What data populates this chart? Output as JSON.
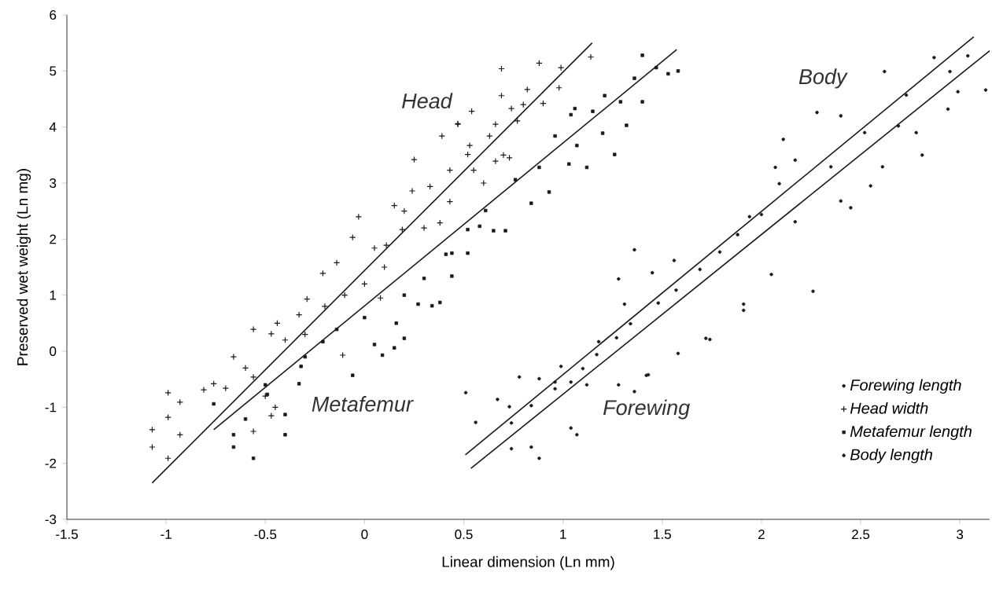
{
  "chart_data": {
    "type": "scatter",
    "xlabel": "Linear dimension (Ln mm)",
    "ylabel": "Preserved wet weight (Ln mg)",
    "xlim": [
      -1.5,
      3.15
    ],
    "ylim": [
      -3,
      6
    ],
    "xticks": [
      -1.5,
      -1,
      -0.5,
      0,
      0.5,
      1,
      1.5,
      2,
      2.5,
      3
    ],
    "yticks": [
      -3,
      -2,
      -1,
      0,
      1,
      2,
      3,
      4,
      5,
      6
    ],
    "grid": false,
    "legend": "bottom right",
    "annotations": [
      "Head",
      "Metafemur",
      "Forewing",
      "Body"
    ],
    "series": [
      {
        "name": "Forewing length",
        "marker": "circle",
        "color": "#1a1a1a",
        "x": [
          0.51,
          0.56,
          0.67,
          0.73,
          0.78,
          0.74,
          0.84,
          0.88,
          0.88,
          0.96,
          1.04,
          1.07,
          1.04,
          1.12,
          1.28,
          1.36,
          1.42,
          1.36,
          1.28,
          0.99,
          1.18,
          1.31,
          1.45,
          1.56,
          1.72,
          1.58,
          1.91,
          2.07,
          1.94,
          2.11,
          2.17,
          2.09,
          2.0,
          1.88,
          1.79,
          2.28,
          2.4,
          2.62,
          2.87
        ],
        "values": [
          -0.74,
          -1.27,
          -0.86,
          -0.99,
          -0.46,
          -1.74,
          -1.71,
          -1.91,
          -0.49,
          -0.55,
          -1.37,
          -1.49,
          -0.55,
          -0.6,
          -0.6,
          -0.72,
          -0.43,
          1.81,
          1.29,
          -0.27,
          0.17,
          0.84,
          1.4,
          1.62,
          0.23,
          -0.04,
          0.84,
          3.28,
          2.4,
          3.78,
          3.41,
          2.99,
          2.44,
          2.08,
          1.77,
          4.26,
          4.2,
          4.99,
          5.24
        ]
      },
      {
        "name": "Head width",
        "marker": "cross",
        "color": "#1a1a1a",
        "x": [
          -1.07,
          -1.07,
          -0.99,
          -0.99,
          -0.93,
          -0.99,
          -0.93,
          -0.81,
          -0.76,
          -0.7,
          -0.66,
          -0.56,
          -0.47,
          -0.44,
          -0.56,
          -0.47,
          -0.56,
          -0.33,
          -0.29,
          -0.21,
          -0.14,
          -0.06,
          -0.03,
          0.05,
          0.11,
          0.08,
          -0.11,
          0.19,
          0.24,
          0.25,
          0.33,
          0.43,
          0.39,
          0.47,
          0.54,
          0.53,
          0.66,
          0.69,
          0.74,
          0.66,
          0.88,
          0.99,
          1.14,
          0.98,
          0.9,
          0.82,
          0.77,
          0.73,
          0.55,
          0.47,
          0.69,
          0.63,
          0.52,
          0.43,
          0.38,
          0.2,
          0.1,
          0.0,
          -0.1,
          -0.2,
          -0.3,
          0.3,
          0.15,
          -0.4,
          -0.6,
          -0.5,
          -0.45,
          0.6,
          0.7,
          0.8
        ],
        "values": [
          -1.4,
          -1.71,
          -0.74,
          -1.18,
          -0.91,
          -1.91,
          -1.49,
          -0.69,
          -0.58,
          -0.66,
          -0.1,
          0.39,
          0.31,
          0.5,
          -0.46,
          -1.15,
          -1.43,
          0.65,
          0.93,
          1.39,
          1.58,
          2.03,
          2.4,
          1.84,
          1.89,
          0.95,
          -0.07,
          2.17,
          2.86,
          3.42,
          2.94,
          3.23,
          3.84,
          4.05,
          4.28,
          3.67,
          3.39,
          5.04,
          4.33,
          4.05,
          5.14,
          5.06,
          5.25,
          4.7,
          4.42,
          4.67,
          4.11,
          3.45,
          3.23,
          4.06,
          4.56,
          3.84,
          3.51,
          2.67,
          2.29,
          2.5,
          1.5,
          1.2,
          1.0,
          0.8,
          0.3,
          2.2,
          2.6,
          0.2,
          -0.3,
          -0.8,
          -1.0,
          3.0,
          3.5,
          4.4
        ]
      },
      {
        "name": "Metafemur length",
        "marker": "square",
        "color": "#1a1a1a",
        "x": [
          0.71,
          0.65,
          0.38,
          0.34,
          0.2,
          0.15,
          0.09,
          -0.06,
          -0.4,
          -0.4,
          -0.56,
          -0.66,
          -0.66,
          -0.33,
          0.44,
          0.52,
          0.58,
          0.44,
          0.27,
          0.16,
          0.05,
          -0.14,
          -0.21,
          -0.32,
          -0.49,
          -0.6,
          -0.76,
          1.26,
          1.32,
          1.12,
          1.03,
          0.93,
          0.84,
          1.21,
          1.2,
          1.36,
          1.4,
          1.53,
          1.58,
          1.47,
          1.4,
          1.15,
          1.04,
          0.96,
          1.07,
          0.88,
          0.76,
          0.61,
          0.52,
          0.41,
          1.29,
          1.06,
          0.0,
          -0.3,
          -0.5,
          0.3,
          0.2
        ],
        "values": [
          2.15,
          2.15,
          0.87,
          0.81,
          0.23,
          0.06,
          -0.07,
          -0.43,
          -1.13,
          -1.49,
          -1.91,
          -1.71,
          -1.49,
          -0.58,
          1.75,
          1.75,
          2.23,
          1.34,
          0.84,
          0.5,
          0.12,
          0.39,
          0.17,
          -0.27,
          -0.77,
          -1.21,
          -0.94,
          3.51,
          4.03,
          3.28,
          3.34,
          2.84,
          2.64,
          4.56,
          3.89,
          4.87,
          5.28,
          4.95,
          5.0,
          5.06,
          4.45,
          4.28,
          4.22,
          3.84,
          3.67,
          3.28,
          3.06,
          2.51,
          2.17,
          1.73,
          4.45,
          4.33,
          0.6,
          -0.1,
          -0.6,
          1.3,
          1.0
        ]
      },
      {
        "name": "Body length",
        "marker": "circle",
        "color": "#1a1a1a",
        "x": [
          3.04,
          3.13,
          2.81,
          2.55,
          2.45,
          2.26,
          2.05,
          1.91,
          1.74,
          1.43,
          2.73,
          2.95,
          2.94,
          2.52,
          2.69,
          2.35,
          1.69,
          1.57,
          1.48,
          1.34,
          1.27,
          1.17,
          1.1,
          0.96,
          0.84,
          0.74,
          2.17,
          2.4,
          2.61,
          2.78,
          2.99
        ],
        "values": [
          5.27,
          4.66,
          3.5,
          2.95,
          2.56,
          1.07,
          1.37,
          0.73,
          0.21,
          -0.42,
          4.57,
          4.99,
          4.32,
          3.9,
          4.02,
          3.29,
          1.46,
          1.09,
          0.86,
          0.49,
          0.24,
          -0.06,
          -0.31,
          -0.67,
          -0.97,
          -1.28,
          2.31,
          2.68,
          3.29,
          3.9,
          4.63
        ]
      },
      {
        "type": "line",
        "marker": "none",
        "color": "#1a1a1a",
        "x": [
          -1.07,
          1.147
        ],
        "values": [
          -2.35,
          5.5
        ]
      },
      {
        "type": "line",
        "marker": "none",
        "color": "#1a1a1a",
        "x": [
          -0.76,
          1.573
        ],
        "values": [
          -1.4,
          5.38
        ]
      },
      {
        "type": "line",
        "marker": "none",
        "color": "#1a1a1a",
        "x": [
          0.508,
          3.07
        ],
        "values": [
          -1.85,
          5.61
        ]
      },
      {
        "type": "line",
        "marker": "none",
        "color": "#1a1a1a",
        "x": [
          0.536,
          3.15
        ],
        "values": [
          -2.09,
          5.36
        ]
      }
    ]
  }
}
